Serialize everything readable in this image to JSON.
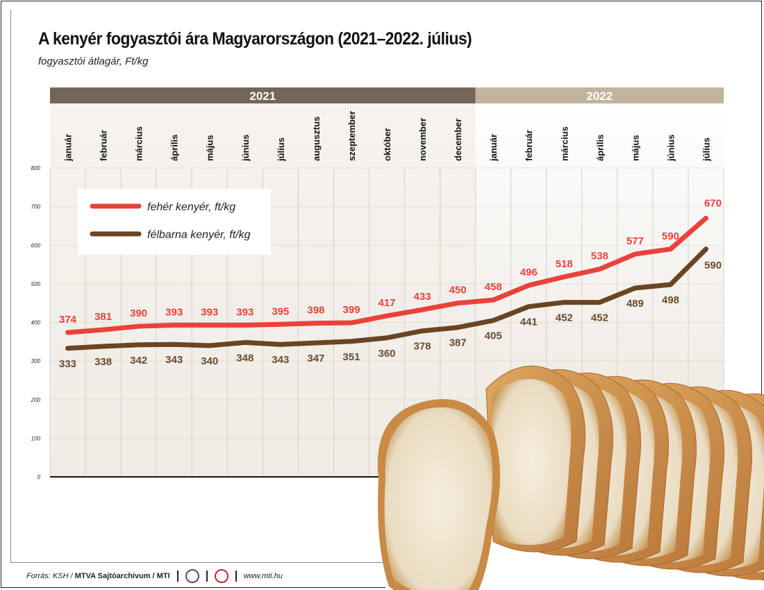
{
  "header": {
    "title": "A kenyér fogyasztói ára Magyarországon (2021–2022. július)",
    "subtitle": "fogyasztói átlagár, Ft/kg"
  },
  "chart_data": {
    "type": "line",
    "years": [
      {
        "label": "2021",
        "months": 12,
        "color": "#736658"
      },
      {
        "label": "2022",
        "months": 7,
        "color": "#c2b39c"
      }
    ],
    "categories": [
      "január",
      "február",
      "március",
      "április",
      "május",
      "június",
      "július",
      "augusztus",
      "szeptember",
      "október",
      "november",
      "december",
      "január",
      "február",
      "március",
      "április",
      "május",
      "június",
      "július"
    ],
    "yticks": [
      0,
      100,
      200,
      300,
      400,
      500,
      600,
      700,
      800
    ],
    "ylim": [
      0,
      800
    ],
    "grid": true,
    "legend_placement": "top-left",
    "series": [
      {
        "name": "fehér kenyér, ft/kg",
        "color": "#e8423a",
        "values": [
          374,
          381,
          390,
          393,
          393,
          393,
          395,
          398,
          399,
          417,
          433,
          450,
          458,
          496,
          518,
          538,
          577,
          590,
          670
        ]
      },
      {
        "name": "félbarna kenyér, ft/kg",
        "color": "#6b4423",
        "values": [
          333,
          338,
          342,
          343,
          340,
          348,
          343,
          347,
          351,
          360,
          378,
          387,
          405,
          441,
          452,
          452,
          489,
          498,
          590
        ]
      }
    ]
  },
  "footer": {
    "source_prefix": "Forrás: KSH /",
    "source_bold": "MTVA Sajtóarchívum / MTI",
    "logo1": "MTVA",
    "url": "www.mti.hu"
  }
}
